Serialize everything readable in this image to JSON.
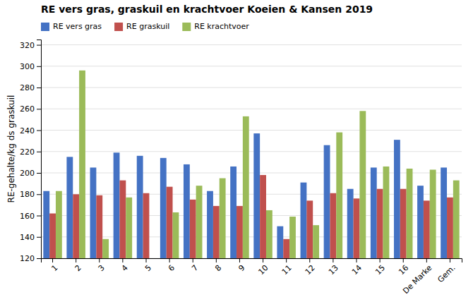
{
  "chart_data": {
    "type": "bar",
    "title": "RE vers gras, graskuil en krachtvoer Koeien & Kansen 2019",
    "ylabel": "RE-gehalte/kg ds graskuil",
    "categories": [
      "1",
      "2",
      "3",
      "4",
      "5",
      "6",
      "7",
      "8",
      "9",
      "10",
      "11",
      "12",
      "13",
      "14",
      "15",
      "16",
      "De Marke",
      "Gem."
    ],
    "series": [
      {
        "name": "RE vers gras",
        "color": "#4472C4",
        "values": [
          183,
          215,
          205,
          219,
          216,
          214,
          208,
          183,
          206,
          237,
          150,
          191,
          226,
          185,
          205,
          231,
          188,
          205
        ]
      },
      {
        "name": "RE graskuil",
        "color": "#C0504D",
        "values": [
          162,
          180,
          179,
          193,
          181,
          187,
          175,
          169,
          169,
          198,
          138,
          174,
          181,
          176,
          185,
          185,
          174,
          177
        ]
      },
      {
        "name": "RE krachtvoer",
        "color": "#9BBB59",
        "values": [
          183,
          296,
          138,
          177,
          120,
          163,
          188,
          195,
          253,
          165,
          159,
          151,
          238,
          258,
          206,
          204,
          203,
          193
        ]
      }
    ],
    "ylim": [
      120,
      325
    ],
    "yticks": [
      120,
      140,
      160,
      180,
      200,
      220,
      240,
      260,
      280,
      300,
      320
    ],
    "grid": true,
    "legend": "upper left"
  }
}
